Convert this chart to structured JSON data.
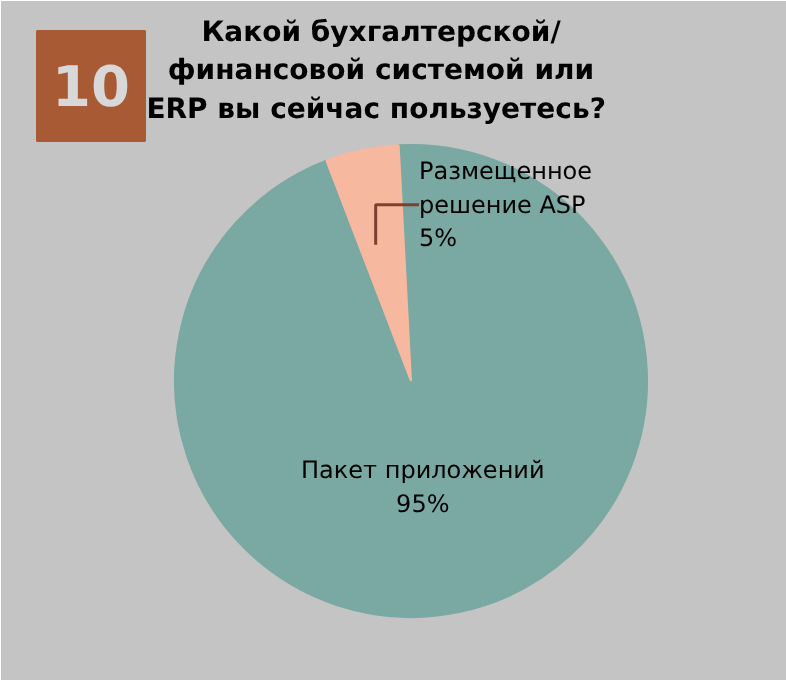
{
  "chart_data": {
    "type": "pie",
    "title": "Какой бухгалтерской/\nфинансовой системой или\nERP вы  сейчас пользуетесь?",
    "annotations": [
      "10"
    ],
    "categories": [
      "Размещенное\nрешение ASP",
      "Пакет приложений"
    ],
    "values": [
      5,
      95
    ],
    "value_labels": [
      "5%",
      "95%"
    ],
    "colors": [
      "#f7b8a0",
      "#7aa8a2"
    ]
  }
}
